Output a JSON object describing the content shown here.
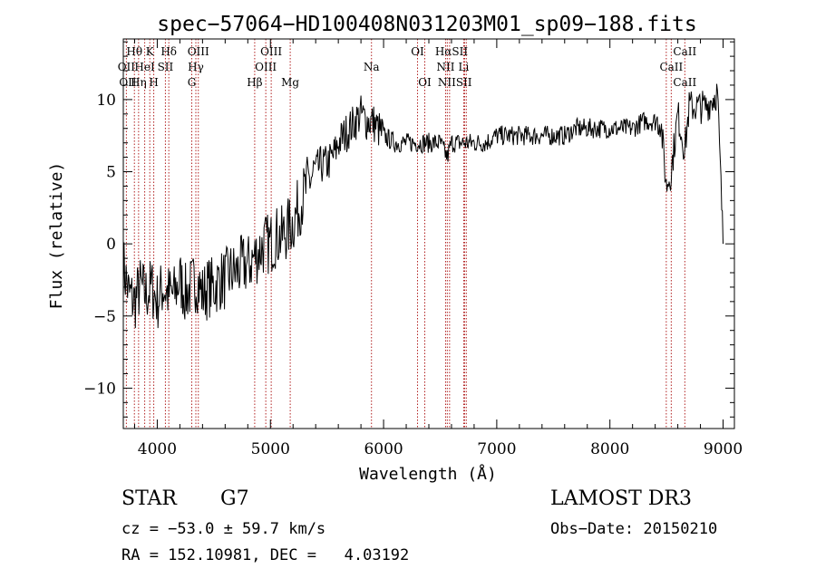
{
  "chart_data": {
    "type": "line",
    "title": "spec−57064−HD100408N031203M01_sp09−188.fits",
    "xlabel": "Wavelength (Å)",
    "ylabel": "Flux (relative)",
    "xlim": [
      3700,
      9100
    ],
    "ylim": [
      -12.8,
      14.2
    ],
    "xticks": [
      4000,
      5000,
      6000,
      7000,
      8000,
      9000
    ],
    "yticks": [
      -10,
      -5,
      0,
      5,
      10
    ],
    "grid": false,
    "series": [
      {
        "x": [
          3700,
          3750,
          3800,
          3850,
          3900,
          3950,
          4000,
          4050,
          4100,
          4150,
          4200,
          4250,
          4300,
          4350,
          4400,
          4450,
          4500,
          4550,
          4600,
          4650,
          4700,
          4750,
          4800,
          4850,
          4900,
          4950,
          5000,
          5050,
          5100,
          5150,
          5200,
          5250,
          5300,
          5350,
          5400,
          5450,
          5500,
          5550,
          5580,
          5600,
          5650,
          5700,
          5750,
          5800,
          5850,
          5900,
          5950,
          6000,
          6100,
          6200,
          6300,
          6400,
          6500,
          6563,
          6600,
          6700,
          6800,
          6900,
          7000,
          7100,
          7200,
          7300,
          7400,
          7500,
          7600,
          7700,
          7800,
          7900,
          8000,
          8100,
          8200,
          8300,
          8400,
          8450,
          8498,
          8542,
          8600,
          8662,
          8700,
          8750,
          8800,
          8850,
          8900,
          8950,
          9000
        ],
        "y": [
          -1.5,
          -3.5,
          -4.0,
          -3.0,
          -3.5,
          -3.0,
          -4.0,
          -3.0,
          -3.5,
          -3.5,
          -2.5,
          -3.5,
          -3.0,
          -2.5,
          -3.5,
          -3.0,
          -3.0,
          -2.5,
          -2.5,
          -2.0,
          -2.0,
          -1.5,
          -1.5,
          -1.0,
          -0.5,
          0.0,
          0.0,
          0.5,
          0.5,
          1.0,
          1.5,
          2.5,
          3.5,
          4.5,
          5.0,
          5.5,
          5.5,
          6.0,
          6.5,
          7.0,
          7.5,
          8.0,
          8.5,
          9.0,
          8.5,
          8.5,
          8.0,
          7.5,
          7.0,
          7.0,
          7.0,
          7.0,
          7.0,
          6.0,
          7.0,
          7.0,
          7.0,
          7.0,
          7.5,
          7.5,
          7.5,
          7.5,
          7.5,
          7.5,
          7.5,
          8.0,
          8.0,
          8.0,
          8.0,
          8.0,
          8.0,
          8.5,
          8.5,
          8.5,
          4.0,
          5.0,
          9.0,
          6.5,
          9.5,
          9.5,
          9.5,
          9.5,
          10.0,
          10.5,
          0.0
        ]
      }
    ],
    "lines": [
      {
        "name": "Hθ",
        "x": 3798
      },
      {
        "name": "OII",
        "x": 3727
      },
      {
        "name": "K",
        "x": 3934
      },
      {
        "name": "H",
        "x": 3969
      },
      {
        "name": "Hη",
        "x": 3835
      },
      {
        "name": "HeI",
        "x": 3889
      },
      {
        "name": "SII",
        "x": 4072
      },
      {
        "name": "Hδ",
        "x": 4102
      },
      {
        "name": "OIII",
        "x": 4363
      },
      {
        "name": "Hγ",
        "x": 4341
      },
      {
        "name": "G",
        "x": 4305
      },
      {
        "name": "Hβ",
        "x": 4861
      },
      {
        "name": "OIII",
        "x": 4959
      },
      {
        "name": "OIII",
        "x": 5007
      },
      {
        "name": "Mg",
        "x": 5175
      },
      {
        "name": "Na",
        "x": 5893
      },
      {
        "name": "OI",
        "x": 6300
      },
      {
        "name": "OI",
        "x": 6364
      },
      {
        "name": "Hα",
        "x": 6563
      },
      {
        "name": "NII",
        "x": 6548
      },
      {
        "name": "NII",
        "x": 6583
      },
      {
        "name": "SII",
        "x": 6716
      },
      {
        "name": "SII",
        "x": 6731
      },
      {
        "name": "Li",
        "x": 6708
      },
      {
        "name": "CaII",
        "x": 8498
      },
      {
        "name": "CaII",
        "x": 8542
      },
      {
        "name": "CaII",
        "x": 8662
      }
    ]
  },
  "labels": [
    {
      "text": "Hθ",
      "x": 3798,
      "row": 1
    },
    {
      "text": "K",
      "x": 3934,
      "row": 1
    },
    {
      "text": "Hδ",
      "x": 4102,
      "row": 1
    },
    {
      "text": "OIII",
      "x": 4363,
      "row": 1
    },
    {
      "text": "OIII",
      "x": 5007,
      "row": 1
    },
    {
      "text": "OI",
      "x": 6300,
      "row": 1
    },
    {
      "text": "HαSII",
      "x": 6600,
      "row": 1
    },
    {
      "text": "CaII",
      "x": 8662,
      "row": 1
    },
    {
      "text": "OII",
      "x": 3727,
      "row": 2
    },
    {
      "text": "HeI",
      "x": 3889,
      "row": 2
    },
    {
      "text": "SII",
      "x": 4072,
      "row": 2
    },
    {
      "text": "Hγ",
      "x": 4341,
      "row": 2
    },
    {
      "text": "OIII",
      "x": 4959,
      "row": 2
    },
    {
      "text": "Na",
      "x": 5893,
      "row": 2
    },
    {
      "text": "NII",
      "x": 6548,
      "row": 2
    },
    {
      "text": "Li",
      "x": 6708,
      "row": 2
    },
    {
      "text": "CaII",
      "x": 8542,
      "row": 2
    },
    {
      "text": "OII",
      "x": 3740,
      "row": 3
    },
    {
      "text": "Hη",
      "x": 3835,
      "row": 3
    },
    {
      "text": "H",
      "x": 3969,
      "row": 3
    },
    {
      "text": "G",
      "x": 4305,
      "row": 3
    },
    {
      "text": "Hβ",
      "x": 4861,
      "row": 3
    },
    {
      "text": "Mg",
      "x": 5175,
      "row": 3
    },
    {
      "text": "OI",
      "x": 6364,
      "row": 3
    },
    {
      "text": "NIISII",
      "x": 6630,
      "row": 3
    },
    {
      "text": "CaII",
      "x": 8662,
      "row": 3
    }
  ],
  "info": {
    "class": "STAR",
    "subclass": "G7",
    "survey": "LAMOST DR3",
    "cz": "cz = −53.0 ± 59.7 km/s",
    "obsdate": "Obs−Date: 20150210",
    "radec": "RA = 152.10981, DEC =   4.03192"
  },
  "colors": {
    "spectrum": "#000000",
    "lines": "#b22222",
    "axes": "#000000",
    "background": "#ffffff"
  }
}
